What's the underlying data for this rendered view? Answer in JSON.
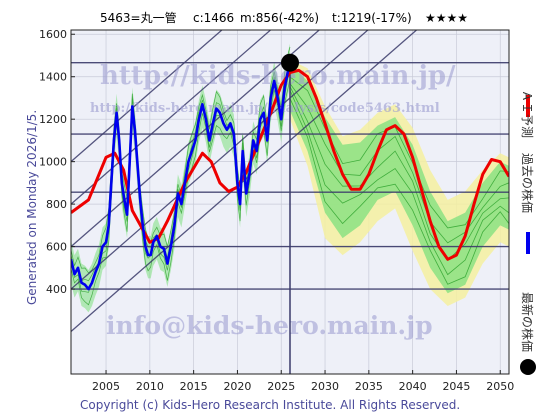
{
  "header": {
    "code_name": "5463=丸一管",
    "current": "c:1466",
    "min": "m:856(-42%)",
    "target": "t:1219(-17%)",
    "stars": "★★★★"
  },
  "generated": "Generated on Monday 2026/1/5.",
  "copyright": "Copyright (c) Kids-Hero Research Institute. All Rights Reserved.",
  "watermarks": {
    "url": "http://kids-hero.main.jp/",
    "url_small": "http://kids-hero.main.jp/analysis/code5463.html",
    "email": "info@kids-hero.main.jp"
  },
  "legend": {
    "ai_forecast": "ＡＩ予測",
    "past_price": "過去の株価",
    "latest_price": "最新の株価"
  },
  "colors": {
    "ai_forecast": "#ee0000",
    "past_price": "#0000ee",
    "latest_price": "#000000",
    "band_green": "#7ee07e",
    "band_yellow": "#f5f0a0",
    "grid": "#3a3a6a"
  },
  "chart_data": {
    "type": "line",
    "xlim": [
      2001,
      2051
    ],
    "ylim": [
      0,
      1620
    ],
    "x_ticks": [
      2005,
      2010,
      2015,
      2020,
      2025,
      2030,
      2035,
      2040,
      2045,
      2050
    ],
    "y_ticks": [
      400,
      600,
      800,
      1000,
      1200,
      1400,
      1600
    ],
    "horizontal_lines": [
      1466,
      1130,
      856,
      600,
      400
    ],
    "current_marker": {
      "x": 2026.0,
      "y": 1466
    },
    "ai_forecast": {
      "x": [
        2001,
        2003,
        2005,
        2006,
        2007,
        2008,
        2010,
        2011,
        2012,
        2014,
        2016,
        2017,
        2018,
        2019,
        2020,
        2021,
        2022,
        2023,
        2024,
        2025,
        2026,
        2027,
        2028,
        2029,
        2030,
        2031,
        2032,
        2033,
        2034,
        2035,
        2036,
        2037,
        2038,
        2039,
        2040,
        2041,
        2042,
        2043,
        2044,
        2045,
        2046,
        2047,
        2048,
        2049,
        2050,
        2051
      ],
      "y": [
        760,
        820,
        1020,
        1040,
        960,
        770,
        620,
        640,
        720,
        900,
        1040,
        1000,
        900,
        860,
        880,
        950,
        1050,
        1150,
        1250,
        1360,
        1420,
        1430,
        1400,
        1300,
        1180,
        1050,
        940,
        870,
        870,
        940,
        1050,
        1150,
        1170,
        1130,
        1020,
        870,
        720,
        600,
        540,
        560,
        650,
        800,
        940,
        1010,
        1000,
        930
      ]
    },
    "past_price": {
      "x": [
        2001.0,
        2001.4,
        2001.8,
        2002.2,
        2002.6,
        2003.0,
        2003.4,
        2003.8,
        2004.2,
        2004.6,
        2005.0,
        2005.3,
        2005.6,
        2005.9,
        2006.2,
        2006.5,
        2006.8,
        2007.1,
        2007.4,
        2007.7,
        2008.0,
        2008.3,
        2008.6,
        2008.9,
        2009.2,
        2009.5,
        2009.8,
        2010.1,
        2010.4,
        2010.8,
        2011.2,
        2011.6,
        2012.0,
        2012.4,
        2012.8,
        2013.2,
        2013.6,
        2014.0,
        2014.4,
        2014.8,
        2015.2,
        2015.6,
        2016.0,
        2016.4,
        2016.8,
        2017.2,
        2017.6,
        2018.0,
        2018.4,
        2018.8,
        2019.2,
        2019.6,
        2020.0,
        2020.3,
        2020.6,
        2021.0,
        2021.4,
        2021.8,
        2022.2,
        2022.6,
        2023.0,
        2023.4,
        2023.8,
        2024.2,
        2024.6,
        2025.0,
        2025.4,
        2025.8,
        2026.0
      ],
      "y": [
        540,
        470,
        500,
        430,
        420,
        400,
        430,
        480,
        520,
        600,
        620,
        700,
        900,
        1100,
        1230,
        1100,
        900,
        820,
        750,
        1000,
        1260,
        1150,
        980,
        820,
        700,
        600,
        560,
        560,
        620,
        650,
        600,
        590,
        520,
        600,
        700,
        850,
        800,
        900,
        1000,
        1050,
        1100,
        1200,
        1270,
        1200,
        1100,
        1180,
        1250,
        1230,
        1180,
        1150,
        1180,
        1130,
        900,
        800,
        1050,
        850,
        950,
        1100,
        1050,
        1200,
        1230,
        1100,
        1300,
        1380,
        1300,
        1200,
        1350,
        1430,
        1466
      ]
    },
    "green_bands": [
      {
        "x": [
          2026,
          2028,
          2030,
          2032,
          2034,
          2036,
          2038,
          2040,
          2042,
          2044,
          2046,
          2048,
          2050,
          2051
        ],
        "upper": [
          1460,
          1380,
          1210,
          1080,
          1090,
          1170,
          1210,
          1080,
          860,
          720,
          760,
          900,
          1000,
          980
        ],
        "lower": [
          1240,
          1050,
          760,
          640,
          700,
          820,
          860,
          700,
          500,
          380,
          420,
          600,
          700,
          680
        ]
      }
    ],
    "yellow_band": {
      "x": [
        2026,
        2028,
        2030,
        2032,
        2034,
        2036,
        2038,
        2040,
        2042,
        2044,
        2046,
        2048,
        2050,
        2051
      ],
      "upper": [
        1480,
        1440,
        1260,
        1120,
        1150,
        1230,
        1270,
        1160,
        960,
        820,
        860,
        960,
        1040,
        1020
      ],
      "lower": [
        1200,
        980,
        640,
        560,
        620,
        720,
        780,
        580,
        400,
        320,
        360,
        520,
        620,
        600
      ]
    },
    "trend_lines": [
      {
        "x": [
          2001,
          2051
        ],
        "y": [
          200,
          2000
        ]
      },
      {
        "x": [
          2001,
          2051
        ],
        "y": [
          400,
          2200
        ]
      },
      {
        "x": [
          2001,
          2051
        ],
        "y": [
          600,
          2400
        ]
      },
      {
        "x": [
          2001,
          2051
        ],
        "y": [
          800,
          2600
        ]
      },
      {
        "x": [
          2001,
          2051
        ],
        "y": [
          1000,
          2800
        ]
      }
    ]
  }
}
